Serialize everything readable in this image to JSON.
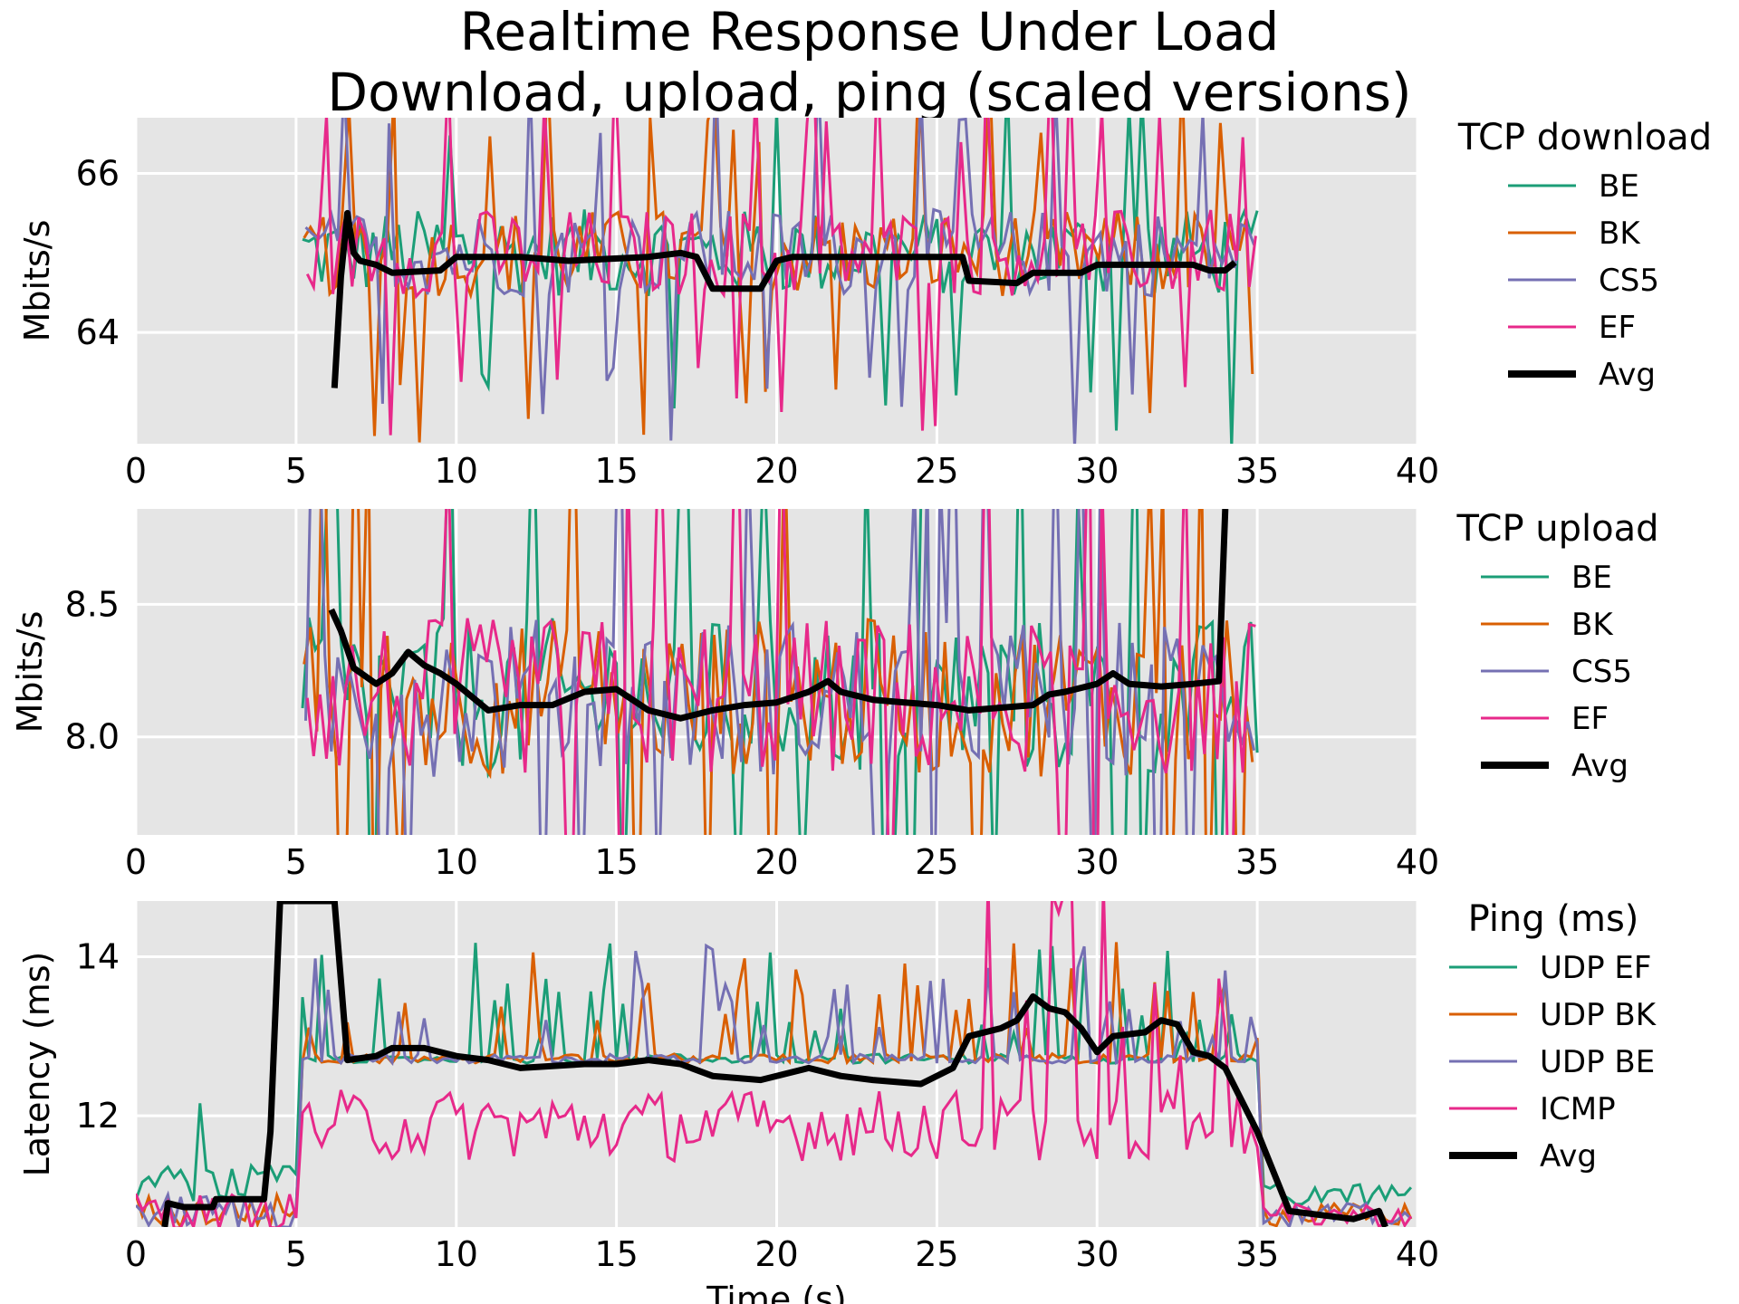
{
  "title_line1": "Realtime Response Under Load",
  "title_line2": "Download, upload, ping (scaled versions)",
  "colors": {
    "BE": "#1b9e77",
    "BK": "#d95f02",
    "CS5": "#7570b3",
    "EF": "#e7298a",
    "Avg": "#000000",
    "panel_bg": "#e5e5e5",
    "grid": "#ffffff"
  },
  "chart_data": [
    {
      "type": "line",
      "title": "TCP download",
      "xlabel": "",
      "ylabel": "Mbits/s",
      "xlim": [
        0,
        40
      ],
      "ylim": [
        62.6,
        66.7
      ],
      "xticks": [
        "0",
        "5",
        "10",
        "15",
        "20",
        "25",
        "30",
        "35",
        "40"
      ],
      "yticks": [
        {
          "value": 64,
          "label": "64"
        },
        {
          "value": 66,
          "label": "66"
        }
      ],
      "legend_title": "TCP download",
      "legend": [
        "BE",
        "BK",
        "CS5",
        "EF",
        "Avg"
      ],
      "x_start": 5.2,
      "x_end": 35.0,
      "x_step": 0.2,
      "base": 65.0,
      "amp": 0.55,
      "avg": [
        [
          6.2,
          63.3
        ],
        [
          6.4,
          64.7
        ],
        [
          6.6,
          65.5
        ],
        [
          6.8,
          65.0
        ],
        [
          7.0,
          64.9
        ],
        [
          7.5,
          64.85
        ],
        [
          8.0,
          64.75
        ],
        [
          9.5,
          64.78
        ],
        [
          10.0,
          64.95
        ],
        [
          12.0,
          64.95
        ],
        [
          13.5,
          64.9
        ],
        [
          16.0,
          64.95
        ],
        [
          17.0,
          65.0
        ],
        [
          17.5,
          64.95
        ],
        [
          18.0,
          64.55
        ],
        [
          19.5,
          64.55
        ],
        [
          20.0,
          64.9
        ],
        [
          20.5,
          64.95
        ],
        [
          25.0,
          64.95
        ],
        [
          25.8,
          64.95
        ],
        [
          26.0,
          64.65
        ],
        [
          27.5,
          64.62
        ],
        [
          28.0,
          64.75
        ],
        [
          29.5,
          64.75
        ],
        [
          30.0,
          64.85
        ],
        [
          33.0,
          64.85
        ],
        [
          33.5,
          64.78
        ],
        [
          34.0,
          64.78
        ],
        [
          34.3,
          64.88
        ]
      ]
    },
    {
      "type": "line",
      "title": "TCP upload",
      "xlabel": "",
      "ylabel": "Mbits/s",
      "xlim": [
        0,
        40
      ],
      "ylim": [
        7.63,
        8.86
      ],
      "xticks": [
        "0",
        "5",
        "10",
        "15",
        "20",
        "25",
        "30",
        "35",
        "40"
      ],
      "yticks": [
        {
          "value": 8.0,
          "label": "8.0"
        },
        {
          "value": 8.5,
          "label": "8.5"
        }
      ],
      "legend_title": "TCP upload",
      "legend": [
        "BE",
        "BK",
        "CS5",
        "EF",
        "Avg"
      ],
      "x_start": 5.2,
      "x_end": 35.0,
      "x_step": 0.2,
      "base": 8.15,
      "amp": 0.3,
      "avg": [
        [
          6.1,
          8.48
        ],
        [
          6.4,
          8.4
        ],
        [
          6.8,
          8.26
        ],
        [
          7.5,
          8.2
        ],
        [
          8.0,
          8.24
        ],
        [
          8.5,
          8.32
        ],
        [
          9.0,
          8.27
        ],
        [
          9.5,
          8.24
        ],
        [
          10.0,
          8.2
        ],
        [
          10.5,
          8.15
        ],
        [
          11.0,
          8.1
        ],
        [
          12.0,
          8.12
        ],
        [
          13.0,
          8.12
        ],
        [
          14.0,
          8.17
        ],
        [
          15.0,
          8.18
        ],
        [
          16.0,
          8.1
        ],
        [
          17.0,
          8.07
        ],
        [
          18.0,
          8.1
        ],
        [
          19.0,
          8.12
        ],
        [
          20.0,
          8.13
        ],
        [
          21.0,
          8.17
        ],
        [
          21.6,
          8.21
        ],
        [
          22.0,
          8.17
        ],
        [
          23.0,
          8.14
        ],
        [
          24.0,
          8.13
        ],
        [
          25.0,
          8.12
        ],
        [
          26.0,
          8.1
        ],
        [
          27.0,
          8.11
        ],
        [
          28.0,
          8.12
        ],
        [
          28.5,
          8.16
        ],
        [
          29.0,
          8.17
        ],
        [
          30.0,
          8.2
        ],
        [
          30.5,
          8.24
        ],
        [
          31.0,
          8.2
        ],
        [
          32.0,
          8.19
        ],
        [
          33.0,
          8.2
        ],
        [
          33.8,
          8.21
        ],
        [
          34.0,
          8.86
        ]
      ]
    },
    {
      "type": "line",
      "title": "Ping (ms)",
      "xlabel": "Time (s)",
      "ylabel": "Latency (ms)",
      "xlim": [
        0,
        40
      ],
      "ylim": [
        10.6,
        14.7
      ],
      "xticks": [
        "0",
        "5",
        "10",
        "15",
        "20",
        "25",
        "30",
        "35",
        "40"
      ],
      "yticks": [
        {
          "value": 12,
          "label": "12"
        },
        {
          "value": 14,
          "label": "14"
        }
      ],
      "legend_title": "Ping (ms)",
      "legend": [
        "UDP EF",
        "UDP BK",
        "UDP BE",
        "ICMP",
        "Avg"
      ],
      "avg": [
        [
          0.9,
          10.6
        ],
        [
          1.0,
          10.9
        ],
        [
          1.5,
          10.85
        ],
        [
          2.4,
          10.85
        ],
        [
          2.5,
          10.95
        ],
        [
          4.0,
          10.95
        ],
        [
          4.2,
          11.8
        ],
        [
          4.5,
          14.7
        ],
        [
          6.2,
          14.7
        ],
        [
          6.6,
          12.7
        ],
        [
          7.5,
          12.75
        ],
        [
          8.0,
          12.85
        ],
        [
          9.0,
          12.85
        ],
        [
          10.0,
          12.75
        ],
        [
          11.0,
          12.7
        ],
        [
          12.0,
          12.6
        ],
        [
          14.0,
          12.65
        ],
        [
          15.0,
          12.65
        ],
        [
          16.0,
          12.7
        ],
        [
          17.0,
          12.65
        ],
        [
          18.0,
          12.5
        ],
        [
          19.5,
          12.45
        ],
        [
          21.0,
          12.6
        ],
        [
          22.0,
          12.5
        ],
        [
          23.0,
          12.45
        ],
        [
          24.5,
          12.4
        ],
        [
          25.5,
          12.6
        ],
        [
          26.0,
          13.0
        ],
        [
          27.0,
          13.1
        ],
        [
          27.5,
          13.2
        ],
        [
          28.0,
          13.5
        ],
        [
          28.5,
          13.35
        ],
        [
          29.0,
          13.3
        ],
        [
          29.5,
          13.1
        ],
        [
          30.0,
          12.8
        ],
        [
          30.5,
          13.0
        ],
        [
          31.5,
          13.05
        ],
        [
          32.0,
          13.2
        ],
        [
          32.5,
          13.15
        ],
        [
          33.0,
          12.8
        ],
        [
          33.5,
          12.75
        ],
        [
          34.0,
          12.6
        ],
        [
          35.0,
          11.8
        ],
        [
          36.0,
          10.8
        ],
        [
          37.0,
          10.75
        ],
        [
          38.0,
          10.7
        ],
        [
          38.8,
          10.8
        ],
        [
          39.0,
          10.6
        ]
      ]
    }
  ],
  "xticks_bottom_label": "Time (s)"
}
